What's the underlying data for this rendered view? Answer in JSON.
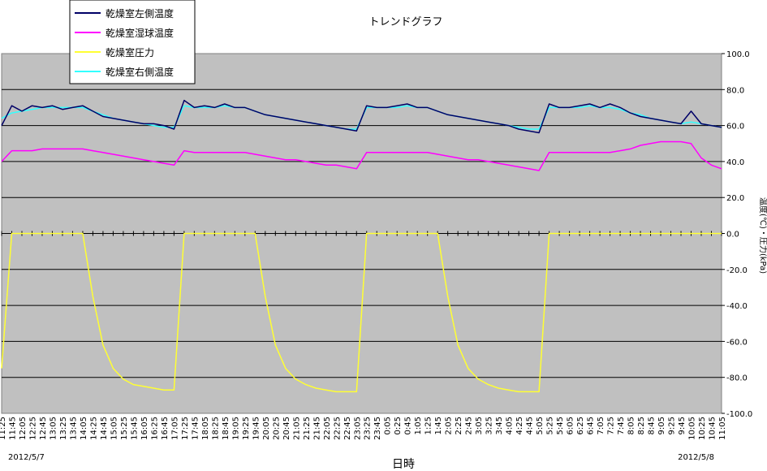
{
  "chart_data": {
    "type": "line",
    "title": "トレンドグラフ",
    "xlabel": "日時",
    "ylabel": "温度(℃)・圧力(kPa)",
    "ylim": [
      -100,
      100
    ],
    "y_ticks": [
      100,
      80,
      60,
      40,
      20,
      0,
      -20,
      -40,
      -60,
      -80,
      -100
    ],
    "grid": true,
    "legend_position": "top-left",
    "date_left": "2012/5/7",
    "date_right": "2012/5/8",
    "x_ticks": [
      "11:25",
      "11:45",
      "12:05",
      "12:25",
      "12:45",
      "13:05",
      "13:25",
      "13:45",
      "14:05",
      "14:25",
      "14:45",
      "15:05",
      "15:25",
      "15:45",
      "16:05",
      "16:25",
      "16:45",
      "17:05",
      "17:25",
      "17:45",
      "18:05",
      "18:25",
      "18:45",
      "19:05",
      "19:25",
      "19:45",
      "20:05",
      "20:25",
      "20:45",
      "21:05",
      "21:25",
      "21:45",
      "22:05",
      "22:25",
      "22:45",
      "23:05",
      "23:25",
      "23:45",
      "0:05",
      "0:25",
      "0:45",
      "1:05",
      "1:25",
      "1:45",
      "2:05",
      "2:25",
      "2:45",
      "3:05",
      "3:25",
      "3:45",
      "4:05",
      "4:25",
      "4:45",
      "5:05",
      "5:25",
      "5:45",
      "6:05",
      "6:25",
      "6:45",
      "7:05",
      "7:25",
      "7:45",
      "8:05",
      "8:25",
      "8:45",
      "9:05",
      "9:25",
      "9:45",
      "10:05",
      "10:25",
      "10:45",
      "11:05"
    ],
    "series": [
      {
        "name": "乾燥室左側温度",
        "color": "#000066",
        "values": [
          60,
          71,
          68,
          71,
          70,
          71,
          69,
          70,
          71,
          68,
          65,
          64,
          63,
          62,
          61,
          61,
          60,
          58,
          74,
          70,
          71,
          70,
          72,
          70,
          70,
          68,
          66,
          65,
          64,
          63,
          62,
          61,
          60,
          59,
          58,
          57,
          71,
          70,
          70,
          71,
          72,
          70,
          70,
          68,
          66,
          65,
          64,
          63,
          62,
          61,
          60,
          58,
          57,
          56,
          72,
          70,
          70,
          71,
          72,
          70,
          72,
          70,
          67,
          65,
          64,
          63,
          62,
          61,
          68,
          61,
          60,
          59
        ]
      },
      {
        "name": "乾燥室湿球温度",
        "color": "#ff00ff",
        "values": [
          40,
          46,
          46,
          46,
          47,
          47,
          47,
          47,
          47,
          46,
          45,
          44,
          43,
          42,
          41,
          40,
          39,
          38,
          46,
          45,
          45,
          45,
          45,
          45,
          45,
          44,
          43,
          42,
          41,
          41,
          40,
          39,
          38,
          38,
          37,
          36,
          45,
          45,
          45,
          45,
          45,
          45,
          45,
          44,
          43,
          42,
          41,
          41,
          40,
          39,
          38,
          37,
          36,
          35,
          45,
          45,
          45,
          45,
          45,
          45,
          45,
          46,
          47,
          49,
          50,
          51,
          51,
          51,
          50,
          42,
          38,
          36
        ]
      },
      {
        "name": "乾燥室圧力",
        "color": "#ffff33",
        "values": [
          -75,
          0,
          0,
          0,
          0,
          0,
          0,
          0,
          0,
          -35,
          -62,
          -75,
          -81,
          -84,
          -85,
          -86,
          -87,
          -87,
          0,
          0,
          0,
          0,
          0,
          0,
          0,
          0,
          -35,
          -62,
          -75,
          -81,
          -84,
          -86,
          -87,
          -88,
          -88,
          -88,
          0,
          0,
          0,
          0,
          0,
          0,
          0,
          0,
          -35,
          -62,
          -75,
          -81,
          -84,
          -86,
          -87,
          -88,
          -88,
          -88,
          0,
          0,
          0,
          0,
          0,
          0,
          0,
          0,
          0,
          0,
          0,
          0,
          0,
          0,
          0,
          0,
          0,
          0
        ]
      },
      {
        "name": "乾燥室右側温度",
        "color": "#33ffff",
        "values": [
          64,
          67,
          68,
          69,
          70,
          70,
          70,
          70,
          70,
          68,
          66,
          64,
          63,
          62,
          61,
          60,
          59,
          59,
          71,
          70,
          70,
          70,
          71,
          70,
          70,
          68,
          66,
          65,
          64,
          63,
          62,
          61,
          60,
          59,
          58,
          58,
          70,
          70,
          70,
          70,
          71,
          70,
          70,
          68,
          66,
          65,
          64,
          63,
          62,
          61,
          60,
          59,
          58,
          58,
          70,
          70,
          70,
          70,
          71,
          70,
          70,
          69,
          67,
          66,
          64,
          63,
          62,
          61,
          62,
          61,
          60,
          59
        ]
      }
    ]
  }
}
